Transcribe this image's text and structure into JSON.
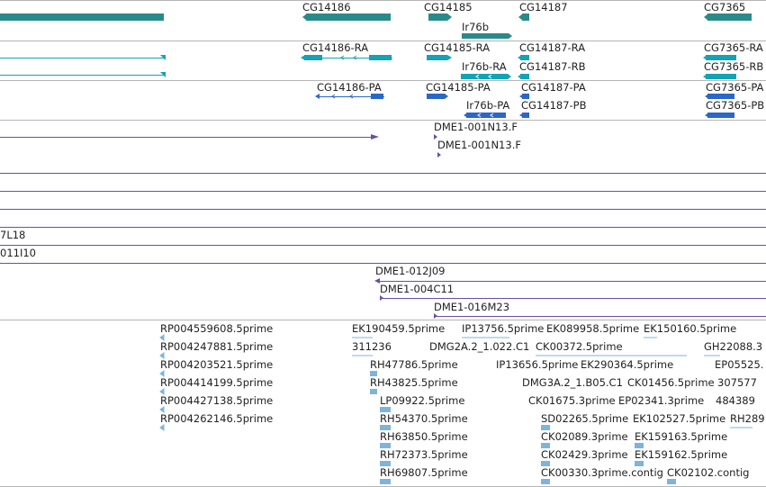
{
  "colors": {
    "gene": "#2a8a8a",
    "transcript": "#12a3b4",
    "cds": "#2a67c7",
    "clone": "#6b4fa3",
    "est": "#7eb4d9",
    "separator": "#b5b5b5"
  },
  "tracks": {
    "genes": {
      "labels": [
        "CG14186",
        "CG14185",
        "Ir76b",
        "CG14187",
        "CG7365"
      ]
    },
    "transcripts": {
      "labels": [
        "CG14186-RA",
        "CG14185-RA",
        "Ir76b-RA",
        "CG14187-RA",
        "CG14187-RB",
        "CG7365-RA",
        "CG7365-RB"
      ]
    },
    "cds": {
      "labels": [
        "CG14186-PA",
        "CG14185-PA",
        "Ir76b-PA",
        "CG14187-PA",
        "CG14187-PB",
        "CG7365-PA",
        "CG7365-PB"
      ]
    },
    "clones_a": {
      "labels": [
        "DME1-001N13.F",
        "DME1-001N13.F"
      ]
    },
    "clones_b": {
      "labels": [
        "7L18",
        "011I10",
        "DME1-012J09",
        "DME1-004C11",
        "DME1-016M23"
      ]
    },
    "ests": {
      "labels": [
        "RP004559608.5prime",
        "RP004247881.5prime",
        "RP004203521.5prime",
        "RP004414199.5prime",
        "RP004427138.5prime",
        "RP004262146.5prime",
        "EK190459.5prime",
        "311236",
        "RH47786.5prime",
        "RH43825.5prime",
        "LP09922.5prime",
        "RH54370.5prime",
        "RH63850.5prime",
        "RH72373.5prime",
        "RH69807.5prime",
        "IP13756.5prime",
        "DMG2A.2_1.022.C1",
        "IP13656.5prime",
        "DMG3A.2_1.B05.C1",
        "EK089958.5prime",
        "CK00372.5prime",
        "EK290364.5prime",
        "CK01456.5prime",
        "CK01675.3prime",
        "EP02341.3prime",
        "SD02265.5prime",
        "EK102527.5prime",
        "CK02089.3prime",
        "EK159163.5prime",
        "CK02429.3prime",
        "EK159162.5prime",
        "CK00330.3prime.contig",
        "CK02102.contig",
        "EK150160.5prime",
        "GH22088.3",
        "EP05525.",
        "307577",
        "484389",
        "RH289"
      ]
    }
  }
}
